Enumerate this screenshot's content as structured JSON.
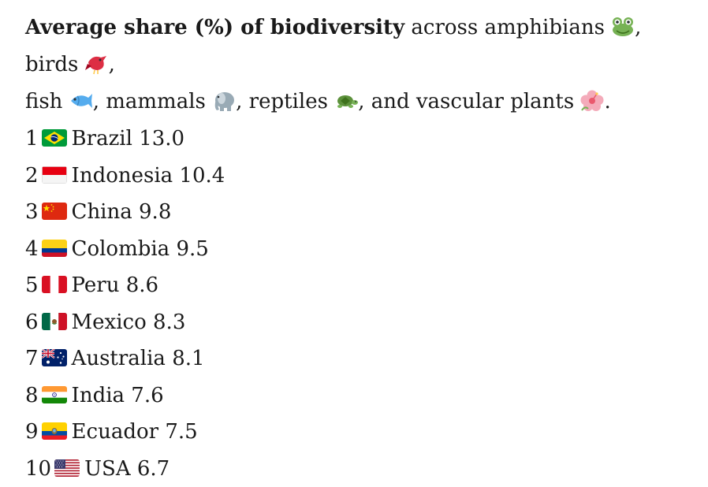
{
  "intro": {
    "bold": "Average share (%) of biodiversity",
    "t1": " across amphibians ",
    "t2": ", birds ",
    "t3": ",",
    "t4": "fish ",
    "t5": ", mammals ",
    "t6": ", reptiles ",
    "t7": ", and vascular plants ",
    "t8": "."
  },
  "icons": [
    "frog-icon",
    "bird-icon",
    "fish-icon",
    "elephant-icon",
    "turtle-icon",
    "hibiscus-icon"
  ],
  "rows": [
    {
      "rank": "1",
      "flag": "brazil",
      "country": "Brazil",
      "value": "13.0"
    },
    {
      "rank": "2",
      "flag": "indonesia",
      "country": "Indonesia",
      "value": "10.4"
    },
    {
      "rank": "3",
      "flag": "china",
      "country": "China",
      "value": "9.8"
    },
    {
      "rank": "4",
      "flag": "colombia",
      "country": "Colombia",
      "value": "9.5"
    },
    {
      "rank": "5",
      "flag": "peru",
      "country": "Peru",
      "value": "8.6"
    },
    {
      "rank": "6",
      "flag": "mexico",
      "country": "Mexico",
      "value": "8.3"
    },
    {
      "rank": "7",
      "flag": "australia",
      "country": "Australia",
      "value": "8.1"
    },
    {
      "rank": "8",
      "flag": "india",
      "country": "India",
      "value": "7.6"
    },
    {
      "rank": "9",
      "flag": "ecuador",
      "country": "Ecuador",
      "value": "7.5"
    },
    {
      "rank": "10",
      "flag": "usa",
      "country": "USA",
      "value": "6.7"
    }
  ]
}
